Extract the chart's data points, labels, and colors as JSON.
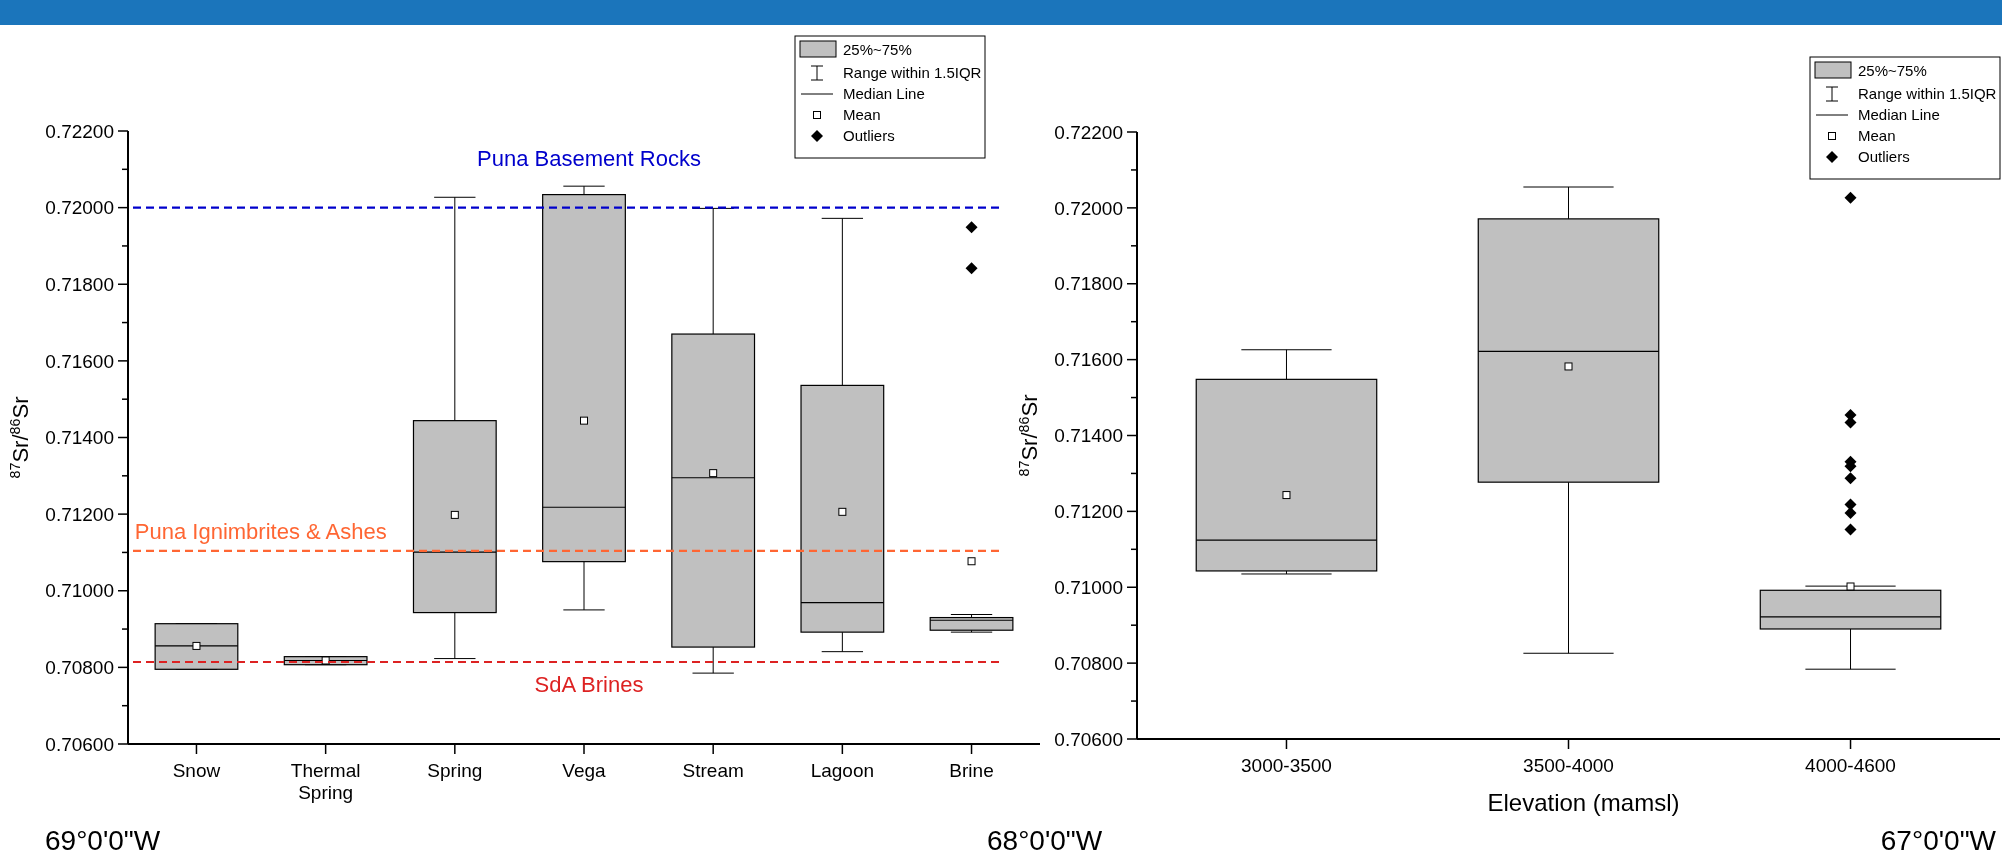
{
  "chart_data": [
    {
      "type": "box",
      "ylabel": "$^{87}$Sr/$^{86}$Sr",
      "categories": [
        "Snow",
        "Thermal Spring",
        "Spring",
        "Vega",
        "Stream",
        "Lagoon",
        "Brine"
      ],
      "series": [
        {
          "name": "25%~75%",
          "color": "#c0c0c0",
          "boxes": [
            {
              "low": 0.70795,
              "q1": 0.70795,
              "median": 0.70856,
              "q3": 0.70914,
              "high": 0.70914,
              "mean": 0.70856
            },
            {
              "low": 0.70807,
              "q1": 0.70807,
              "median": 0.70818,
              "q3": 0.70828,
              "high": 0.70828,
              "mean": 0.70818
            },
            {
              "low": 0.70823,
              "q1": 0.70943,
              "median": 0.71101,
              "q3": 0.71444,
              "high": 0.72027,
              "mean": 0.71198
            },
            {
              "low": 0.7095,
              "q1": 0.71076,
              "median": 0.71218,
              "q3": 0.72034,
              "high": 0.72056,
              "mean": 0.71444
            },
            {
              "low": 0.70785,
              "q1": 0.70853,
              "median": 0.71295,
              "q3": 0.7167,
              "high": 0.71998,
              "mean": 0.71307
            },
            {
              "low": 0.70841,
              "q1": 0.70892,
              "median": 0.70969,
              "q3": 0.71536,
              "high": 0.71972,
              "mean": 0.71206
            },
            {
              "low": 0.70892,
              "q1": 0.70897,
              "median": 0.70923,
              "q3": 0.7093,
              "high": 0.70938,
              "mean": 0.71077,
              "outliers": [
                0.71949,
                0.71842
              ]
            }
          ]
        }
      ],
      "ylim": [
        0.706,
        0.722
      ],
      "yticks": [
        {
          "value": 0.706,
          "label": "0.70600"
        },
        {
          "value": 0.707,
          "label": null
        },
        {
          "value": 0.708,
          "label": "0.70800"
        },
        {
          "value": 0.709,
          "label": null
        },
        {
          "value": 0.71,
          "label": "0.71000"
        },
        {
          "value": 0.711,
          "label": null
        },
        {
          "value": 0.712,
          "label": "0.71200"
        },
        {
          "value": 0.713,
          "label": null
        },
        {
          "value": 0.714,
          "label": "0.71400"
        },
        {
          "value": 0.715,
          "label": null
        },
        {
          "value": 0.716,
          "label": "0.71600"
        },
        {
          "value": 0.717,
          "label": null
        },
        {
          "value": 0.718,
          "label": "0.71800"
        },
        {
          "value": 0.719,
          "label": null
        },
        {
          "value": 0.72,
          "label": "0.72000"
        },
        {
          "value": 0.721,
          "label": null
        },
        {
          "value": 0.722,
          "label": "0.72200"
        }
      ],
      "ref_lines": [
        {
          "axis": "y",
          "value": 0.72,
          "label": "Puna Basement Rocks",
          "color": "#0000cc",
          "line_style": "dashed"
        },
        {
          "axis": "y",
          "value": 0.71104,
          "label": "Puna Ignimbrites & Ashes",
          "color": "#ff6633",
          "line_style": "dashed"
        },
        {
          "axis": "y",
          "value": 0.70814,
          "label": "SdA Brines",
          "color": "#dd2222",
          "line_style": "dashed"
        }
      ],
      "legend": "top right",
      "grid": false,
      "annotations": [
        "Range within 1.5IQR",
        "Median Line",
        "Mean",
        "Outliers",
        "69°0'0\"W",
        "68°0'0\"W"
      ]
    },
    {
      "type": "box",
      "ylabel": "$^{87}$Sr/$^{86}$Sr",
      "xlabel": "Elevation (mamsl)",
      "categories": [
        "3000-3500",
        "3500-4000",
        "4000-4600"
      ],
      "series": [
        {
          "name": "25%~75%",
          "color": "#c0c0c0",
          "boxes": [
            {
              "low": 0.71035,
              "q1": 0.71043,
              "median": 0.71124,
              "q3": 0.71548,
              "high": 0.71626,
              "mean": 0.71243
            },
            {
              "low": 0.70826,
              "q1": 0.71277,
              "median": 0.71622,
              "q3": 0.71971,
              "high": 0.72055,
              "mean": 0.71582
            },
            {
              "low": 0.70784,
              "q1": 0.7089,
              "median": 0.70922,
              "q3": 0.70992,
              "high": 0.71003,
              "mean": 0.71002,
              "outliers": [
                0.72027,
                0.71454,
                0.71434,
                0.71331,
                0.71319,
                0.71287,
                0.71218,
                0.71196,
                0.71152
              ]
            }
          ]
        }
      ],
      "ylim": [
        0.706,
        0.722
      ],
      "yticks": [
        {
          "value": 0.706,
          "label": "0.70600"
        },
        {
          "value": 0.707,
          "label": null
        },
        {
          "value": 0.708,
          "label": "0.70800"
        },
        {
          "value": 0.709,
          "label": null
        },
        {
          "value": 0.71,
          "label": "0.71000"
        },
        {
          "value": 0.711,
          "label": null
        },
        {
          "value": 0.712,
          "label": "0.71200"
        },
        {
          "value": 0.713,
          "label": null
        },
        {
          "value": 0.714,
          "label": "0.71400"
        },
        {
          "value": 0.715,
          "label": null
        },
        {
          "value": 0.716,
          "label": "0.71600"
        },
        {
          "value": 0.717,
          "label": null
        },
        {
          "value": 0.718,
          "label": "0.71800"
        },
        {
          "value": 0.719,
          "label": null
        },
        {
          "value": 0.72,
          "label": "0.72000"
        },
        {
          "value": 0.721,
          "label": null
        },
        {
          "value": 0.722,
          "label": "0.72200"
        }
      ],
      "legend": "top right",
      "grid": false,
      "annotations": [
        "Range within 1.5IQR",
        "Median Line",
        "Mean",
        "Outliers",
        "67°0'0\"W"
      ]
    }
  ]
}
